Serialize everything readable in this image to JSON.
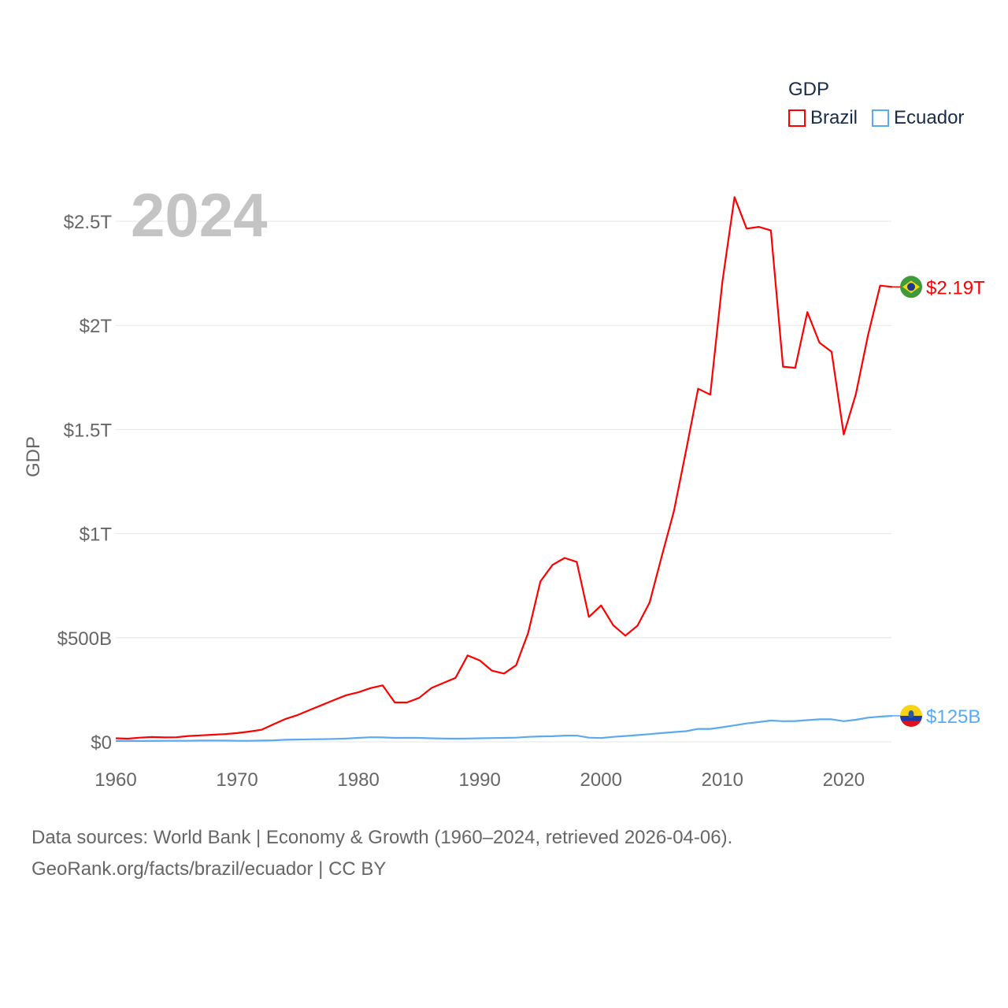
{
  "chart_data": {
    "type": "line",
    "title": "GDP",
    "year_label": "2024",
    "xlabel": "",
    "ylabel": "GDP",
    "xlim": [
      1960,
      2024
    ],
    "ylim": [
      0,
      2.5
    ],
    "y_unit": "trillion USD",
    "grid": true,
    "legend_placement": "top-right",
    "x_ticks": [
      1960,
      1970,
      1980,
      1990,
      2000,
      2010,
      2020
    ],
    "x_tick_labels": [
      "1960",
      "1970",
      "1980",
      "1990",
      "2000",
      "2010",
      "2020"
    ],
    "y_ticks": [
      0,
      0.5,
      1,
      1.5,
      2,
      2.5
    ],
    "y_tick_labels": [
      "$0",
      "$500B",
      "$1T",
      "$1.5T",
      "$2T",
      "$2.5T"
    ],
    "x": [
      1960,
      1961,
      1962,
      1963,
      1964,
      1965,
      1966,
      1967,
      1968,
      1969,
      1970,
      1971,
      1972,
      1973,
      1974,
      1975,
      1976,
      1977,
      1978,
      1979,
      1980,
      1981,
      1982,
      1983,
      1984,
      1985,
      1986,
      1987,
      1988,
      1989,
      1990,
      1991,
      1992,
      1993,
      1994,
      1995,
      1996,
      1997,
      1998,
      1999,
      2000,
      2001,
      2002,
      2003,
      2004,
      2005,
      2006,
      2007,
      2008,
      2009,
      2010,
      2011,
      2012,
      2013,
      2014,
      2015,
      2016,
      2017,
      2018,
      2019,
      2020,
      2021,
      2022,
      2023,
      2024
    ],
    "series": [
      {
        "name": "Brazil",
        "color": "#ff0000",
        "end_label": "$2.19T",
        "values": [
          0.017,
          0.015,
          0.02,
          0.023,
          0.021,
          0.022,
          0.028,
          0.031,
          0.034,
          0.037,
          0.042,
          0.049,
          0.058,
          0.084,
          0.11,
          0.129,
          0.153,
          0.177,
          0.201,
          0.224,
          0.238,
          0.258,
          0.271,
          0.189,
          0.189,
          0.211,
          0.258,
          0.283,
          0.307,
          0.415,
          0.391,
          0.342,
          0.328,
          0.368,
          0.525,
          0.77,
          0.85,
          0.883,
          0.864,
          0.6,
          0.655,
          0.56,
          0.51,
          0.558,
          0.669,
          0.891,
          1.107,
          1.397,
          1.696,
          1.667,
          2.209,
          2.616,
          2.465,
          2.473,
          2.456,
          1.802,
          1.796,
          2.064,
          1.917,
          1.873,
          1.476,
          1.67,
          1.952,
          2.191,
          2.185
        ]
      },
      {
        "name": "Ecuador",
        "color": "#5aaaf0",
        "end_label": "$125B",
        "values": [
          0.004,
          0.004,
          0.004,
          0.004,
          0.005,
          0.005,
          0.005,
          0.006,
          0.006,
          0.006,
          0.005,
          0.005,
          0.006,
          0.007,
          0.01,
          0.011,
          0.012,
          0.013,
          0.014,
          0.016,
          0.019,
          0.022,
          0.021,
          0.019,
          0.019,
          0.019,
          0.017,
          0.016,
          0.015,
          0.016,
          0.017,
          0.018,
          0.019,
          0.02,
          0.024,
          0.026,
          0.027,
          0.03,
          0.03,
          0.02,
          0.018,
          0.024,
          0.028,
          0.032,
          0.037,
          0.042,
          0.047,
          0.051,
          0.062,
          0.062,
          0.07,
          0.079,
          0.088,
          0.095,
          0.102,
          0.099,
          0.1,
          0.104,
          0.108,
          0.108,
          0.099,
          0.106,
          0.116,
          0.121,
          0.125
        ]
      }
    ]
  },
  "legend": {
    "title": "GDP",
    "items": [
      "Brazil",
      "Ecuador"
    ]
  },
  "source": {
    "line1": "Data sources: World Bank | Economy & Growth (1960–2024, retrieved 2026-04-06).",
    "line2": "GeoRank.org/facts/brazil/ecuador | CC BY"
  }
}
